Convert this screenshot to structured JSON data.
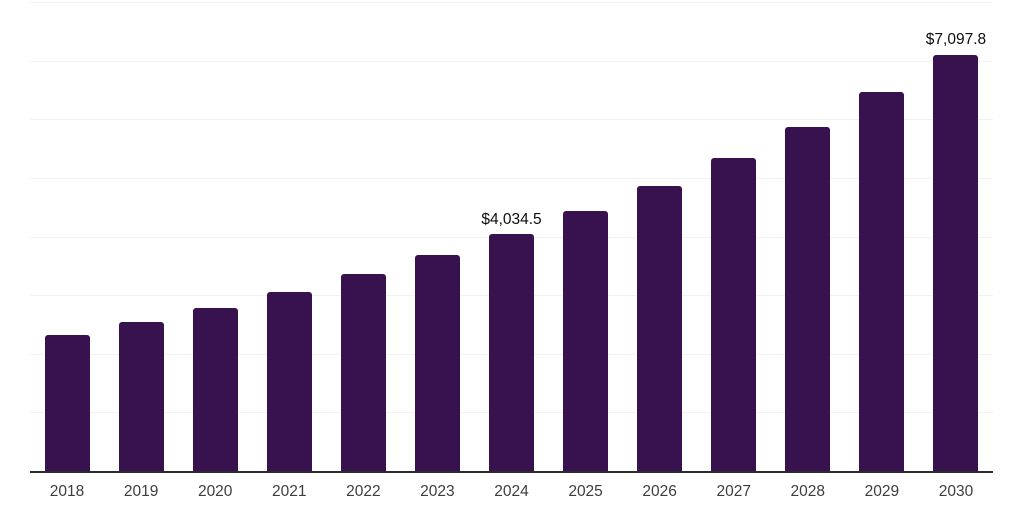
{
  "chart_data": {
    "type": "bar",
    "title": "",
    "xlabel": "",
    "ylabel": "",
    "categories": [
      "2018",
      "2019",
      "2020",
      "2021",
      "2022",
      "2023",
      "2024",
      "2025",
      "2026",
      "2027",
      "2028",
      "2029",
      "2030"
    ],
    "values": [
      2325,
      2545,
      2785,
      3055,
      3360,
      3685,
      4034.5,
      4435,
      4860,
      5340,
      5870,
      6460,
      7097.8
    ],
    "labeled_points": [
      {
        "category": "2024",
        "label": "$4,034.5"
      },
      {
        "category": "2030",
        "label": "$7,097.8"
      }
    ],
    "ylim": [
      0,
      8000
    ],
    "gridline_interval": 1000,
    "grid": "horizontal",
    "legend": "none",
    "y_tick_labels_visible": false,
    "bar_color": "#37124f",
    "axis_line_color": "#2b2b2b",
    "gridline_color": "#f2f1f4",
    "data_label_color": "#0d0d0d",
    "tick_label_color": "#3d3d3d",
    "background_color": "#ffffff"
  }
}
